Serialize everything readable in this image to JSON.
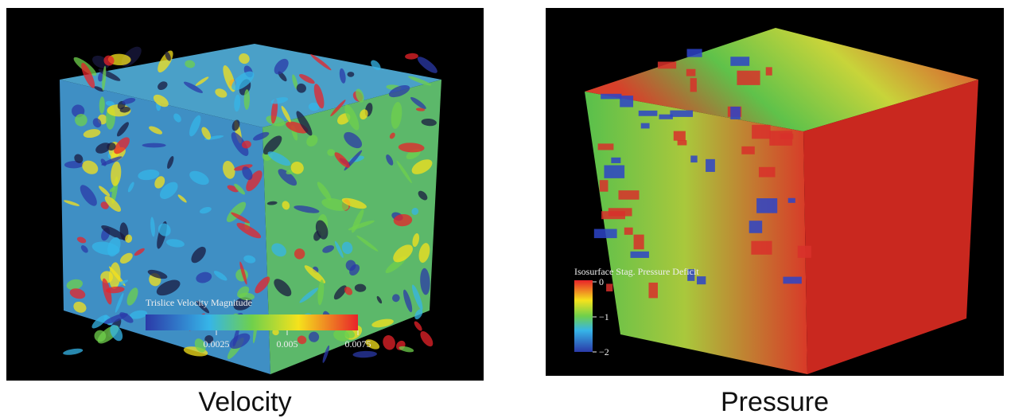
{
  "panels": [
    {
      "caption": "Velocity",
      "colorbar": {
        "title": "Trislice Velocity Magnitude",
        "lim": [
          0,
          0.0075
        ],
        "ticks": [
          0.0025,
          0.005,
          0.0075
        ]
      }
    },
    {
      "caption": "Pressure",
      "colorbar": {
        "title": "Isosurface Stag. Pressure Deficit",
        "lim": [
          -2,
          0
        ],
        "ticks": [
          0,
          {
            "value": -1,
            "label": "−1"
          },
          {
            "value": -2,
            "label": "−2"
          }
        ]
      }
    }
  ]
}
